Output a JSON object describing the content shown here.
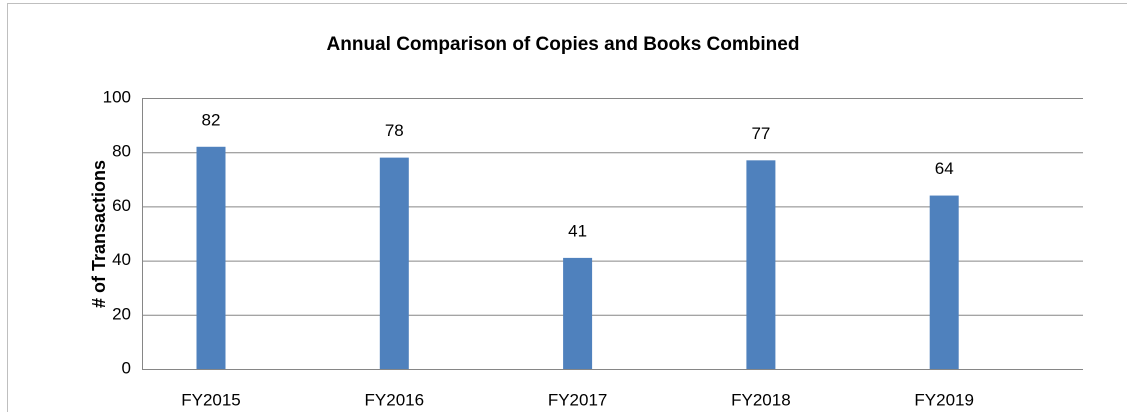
{
  "chart_data": {
    "type": "bar",
    "title": "Annual Comparison of Copies and Books Combined",
    "y_label": "# of Transactions",
    "categories": [
      "FY2015",
      "FY2016",
      "FY2017",
      "FY2018",
      "FY2019"
    ],
    "values": [
      82,
      78,
      41,
      77,
      64
    ],
    "color": "#4f81bd",
    "ylim": [
      0,
      100
    ],
    "yticks": [
      0,
      20,
      40,
      60,
      80,
      100
    ],
    "grid": true
  }
}
